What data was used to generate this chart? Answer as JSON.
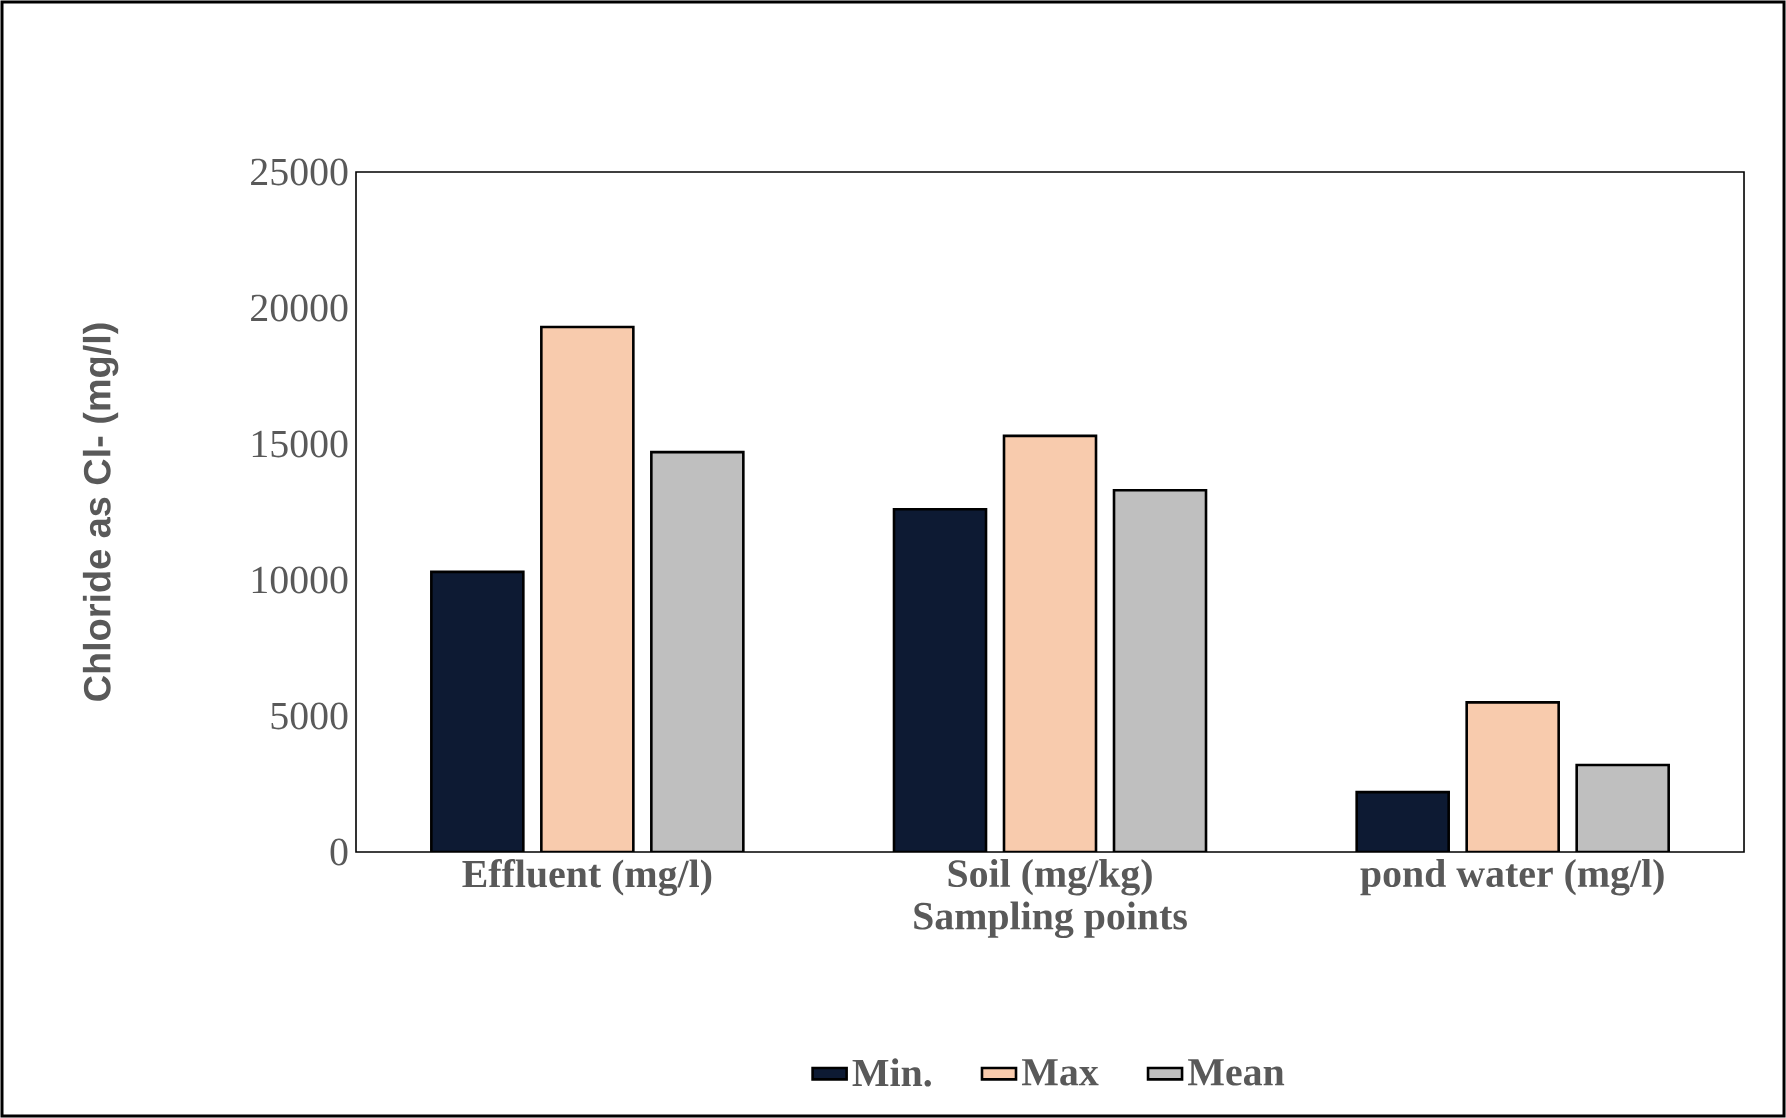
{
  "chart_data": {
    "type": "bar",
    "xlabel": "Sampling points",
    "ylabel": "Chloride as Cl- (mg/l)",
    "categories": [
      "Effluent (mg/l)",
      "Soil (mg/kg)",
      "pond water (mg/l)"
    ],
    "series": [
      {
        "name": "Min.",
        "color": "#0d1a33",
        "values": [
          10300,
          12600,
          2200
        ]
      },
      {
        "name": "Max",
        "color": "#f8cbad",
        "values": [
          19300,
          15300,
          5500
        ]
      },
      {
        "name": "Mean",
        "color": "#bfbfbf",
        "values": [
          14700,
          13300,
          3200
        ]
      }
    ],
    "ylim": [
      0,
      25000
    ],
    "yticks": [
      0,
      5000,
      10000,
      15000,
      20000,
      25000
    ],
    "legend": "bottom"
  }
}
